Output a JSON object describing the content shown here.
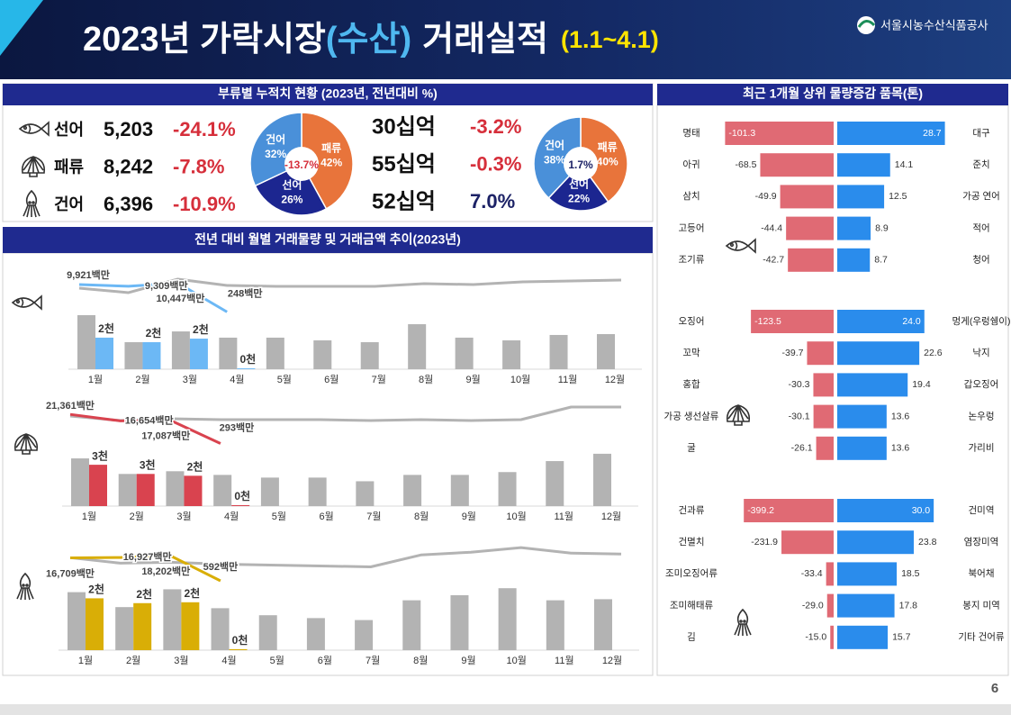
{
  "header": {
    "title": "2023년 가락시장",
    "title_highlight": "(수산)",
    "title_rest": "거래실적",
    "period": "(1.1~4.1)",
    "organization": "서울시농수산식품공사",
    "page": "6"
  },
  "summary": {
    "title": "부류별 누적치 현황 (2023년, 전년대비 %)",
    "rows": [
      {
        "name": "선어",
        "volume": "5,203",
        "volume_change": "-24.1%",
        "amount": "30십억",
        "amount_change": "-3.2%"
      },
      {
        "name": "패류",
        "volume": "8,242",
        "volume_change": "-7.8%",
        "amount": "55십억",
        "amount_change": "-0.3%"
      },
      {
        "name": "건어",
        "volume": "6,396",
        "volume_change": "-10.9%",
        "amount": "52십억",
        "amount_change": "7.0%"
      }
    ]
  },
  "monthly_title": "전년 대비 월별 거래물량 및 거래금액 추이(2023년)",
  "top_items_title": "최근 1개월 상위 물량증감 품목(톤)",
  "chart_data": [
    {
      "type": "pie",
      "categories": [
        "패류",
        "선어",
        "건어"
      ],
      "values": [
        42,
        26,
        32
      ],
      "value_labels": [
        "42%",
        "26%",
        "32%"
      ],
      "colors": [
        "#e8743b",
        "#1c2690",
        "#4a90d9"
      ],
      "center_label": "-13.7%"
    },
    {
      "type": "pie",
      "categories": [
        "패류",
        "선어",
        "건어"
      ],
      "values": [
        40,
        22,
        38
      ],
      "value_labels": [
        "40%",
        "22%",
        "38%"
      ],
      "colors": [
        "#e8743b",
        "#1c2690",
        "#4a90d9"
      ],
      "center_label": "1.7%"
    },
    {
      "type": "bar",
      "categories": [
        "1월",
        "2월",
        "3월",
        "4월",
        "5월",
        "6월",
        "7월",
        "8월",
        "9월",
        "10월",
        "11월",
        "12월"
      ],
      "ylim": [
        0,
        7000
      ],
      "y2lim": [
        -20000,
        15000
      ],
      "series": [
        {
          "type": "bar",
          "color": "#b3b3b3",
          "values": [
            3820,
            1910,
            2670,
            2230,
            2230,
            2040,
            1910,
            3180,
            2230,
            2040,
            2420,
            2480
          ]
        },
        {
          "type": "bar",
          "color": "#6cb8f5",
          "values": [
            2230,
            1910,
            2160,
            60,
            null,
            null,
            null,
            null,
            null,
            null,
            null,
            null
          ],
          "value_labels": [
            "2천",
            "2천",
            "2천",
            "0천",
            null,
            null,
            null,
            null,
            null,
            null,
            null,
            null
          ]
        },
        {
          "type": "line",
          "axis": "y2",
          "color": "#b3b3b3",
          "values": [
            8640,
            7050,
            11820,
            9590,
            9270,
            9270,
            9270,
            10230,
            9910,
            10860,
            11180,
            11500
          ]
        },
        {
          "type": "line",
          "axis": "y2",
          "color": "#6cb8f5",
          "values": [
            9921,
            9309,
            10447,
            248,
            null,
            null,
            null,
            null,
            null,
            null,
            null,
            null
          ],
          "value_labels": [
            "9,921백만",
            "9,309백만",
            "10,447백만",
            "248백만",
            null,
            null,
            null,
            null,
            null,
            null,
            null,
            null
          ]
        }
      ]
    },
    {
      "type": "bar",
      "categories": [
        "1월",
        "2월",
        "3월",
        "4월",
        "5월",
        "6월",
        "7월",
        "8월",
        "9월",
        "10월",
        "11월",
        "12월"
      ],
      "ylim": [
        0,
        8250
      ],
      "y2lim": [
        -45000,
        28000
      ],
      "series": [
        {
          "type": "bar",
          "color": "#b3b3b3",
          "values": [
            3900,
            2630,
            2850,
            2550,
            2330,
            2330,
            2030,
            2550,
            2550,
            2780,
            3680,
            4280
          ]
        },
        {
          "type": "bar",
          "color": "#d9434f",
          "values": [
            3380,
            2630,
            2480,
            75,
            null,
            null,
            null,
            null,
            null,
            null,
            null,
            null
          ],
          "value_labels": [
            "3천",
            "3천",
            "2천",
            "0천",
            null,
            null,
            null,
            null,
            null,
            null,
            null,
            null
          ]
        },
        {
          "type": "line",
          "axis": "y2",
          "color": "#b3b3b3",
          "values": [
            20180,
            16920,
            18220,
            17570,
            17570,
            17570,
            16920,
            17570,
            16920,
            17570,
            26700,
            26700
          ]
        },
        {
          "type": "line",
          "axis": "y2",
          "color": "#d9434f",
          "values": [
            21361,
            16654,
            17087,
            293,
            null,
            null,
            null,
            null,
            null,
            null,
            null,
            null
          ],
          "value_labels": [
            "21,361백만",
            "16,654백만",
            "17,087백만",
            "293백만",
            null,
            null,
            null,
            null,
            null,
            null,
            null,
            null
          ]
        }
      ]
    },
    {
      "type": "bar",
      "categories": [
        "1월",
        "2월",
        "3월",
        "4월",
        "5월",
        "6월",
        "7월",
        "8월",
        "9월",
        "10월",
        "11월",
        "12월"
      ],
      "ylim": [
        0,
        5000
      ],
      "y2lim": [
        -48000,
        29000
      ],
      "series": [
        {
          "type": "bar",
          "color": "#b3b3b3",
          "values": [
            2640,
            1960,
            2770,
            1910,
            1590,
            1460,
            1370,
            2270,
            2500,
            2820,
            2270,
            2320
          ]
        },
        {
          "type": "bar",
          "color": "#d9ae06",
          "values": [
            2360,
            2140,
            2180,
            45,
            null,
            null,
            null,
            null,
            null,
            null,
            null,
            null
          ],
          "value_labels": [
            "2천",
            "2천",
            "2천",
            "0천",
            null,
            null,
            null,
            null,
            null,
            null,
            null,
            null
          ]
        },
        {
          "type": "line",
          "axis": "y2",
          "color": "#b3b3b3",
          "values": [
            16810,
            12960,
            13600,
            12320,
            11670,
            11030,
            10390,
            18730,
            20660,
            23870,
            20020,
            19380
          ]
        },
        {
          "type": "line",
          "axis": "y2",
          "color": "#d9ae06",
          "values": [
            16709,
            16927,
            18202,
            592,
            null,
            null,
            null,
            null,
            null,
            null,
            null,
            null
          ],
          "value_labels": [
            "16,709백만",
            "16,927백만",
            "18,202백만",
            "592백만",
            null,
            null,
            null,
            null,
            null,
            null,
            null,
            null
          ]
        }
      ]
    },
    {
      "type": "diverging",
      "decrease": {
        "categories": [
          "명태",
          "아귀",
          "삼치",
          "고등어",
          "조기류"
        ],
        "values": [
          -101.3,
          -68.5,
          -49.9,
          -44.4,
          -42.7
        ],
        "value_labels": [
          "-101.3",
          "-68.5",
          "-49.9",
          "-44.4",
          "-42.7"
        ],
        "color": "#e06a74",
        "xlim": [
          -105,
          0
        ]
      },
      "increase": {
        "categories": [
          "대구",
          "준치",
          "가공 연어",
          "적어",
          "청어"
        ],
        "values": [
          28.7,
          14.1,
          12.5,
          8.9,
          8.7
        ],
        "value_labels": [
          "28.7",
          "14.1",
          "12.5",
          "8.9",
          "8.7"
        ],
        "color": "#2a8cec",
        "xlim": [
          0,
          30
        ]
      }
    },
    {
      "type": "diverging",
      "decrease": {
        "categories": [
          "오징어",
          "꼬막",
          "홍합",
          "가공 생선살류",
          "굴"
        ],
        "values": [
          -123.5,
          -39.7,
          -30.3,
          -30.1,
          -26.1
        ],
        "value_labels": [
          "-123.5",
          "-39.7",
          "-30.3",
          "-30.1",
          "-26.1"
        ],
        "color": "#e06a74",
        "xlim": [
          -168,
          0
        ]
      },
      "increase": {
        "categories": [
          "멍게(우렁쉥이)",
          "낙지",
          "갑오징어",
          "논우렁",
          "가리비"
        ],
        "values": [
          24.0,
          22.6,
          19.4,
          13.6,
          13.6
        ],
        "value_labels": [
          "24.0",
          "22.6",
          "19.4",
          "13.6",
          "13.6"
        ],
        "color": "#2a8cec",
        "xlim": [
          0,
          31
        ]
      }
    },
    {
      "type": "diverging",
      "decrease": {
        "categories": [
          "건과류",
          "건멸치",
          "조미오징어류",
          "조미해태류",
          "김"
        ],
        "values": [
          -399.2,
          -231.9,
          -33.4,
          -29.0,
          -15.0
        ],
        "value_labels": [
          "-399.2",
          "-231.9",
          "-33.4",
          "-29.0",
          "-15.0"
        ],
        "color": "#e06a74",
        "xlim": [
          -500,
          0
        ]
      },
      "increase": {
        "categories": [
          "건미역",
          "염장미역",
          "북어채",
          "봉지 미역",
          "기타 건어류"
        ],
        "values": [
          30.0,
          23.8,
          18.5,
          17.8,
          15.7
        ],
        "value_labels": [
          "30.0",
          "23.8",
          "18.5",
          "17.8",
          "15.7"
        ],
        "color": "#2a8cec",
        "xlim": [
          0,
          35
        ]
      }
    }
  ]
}
